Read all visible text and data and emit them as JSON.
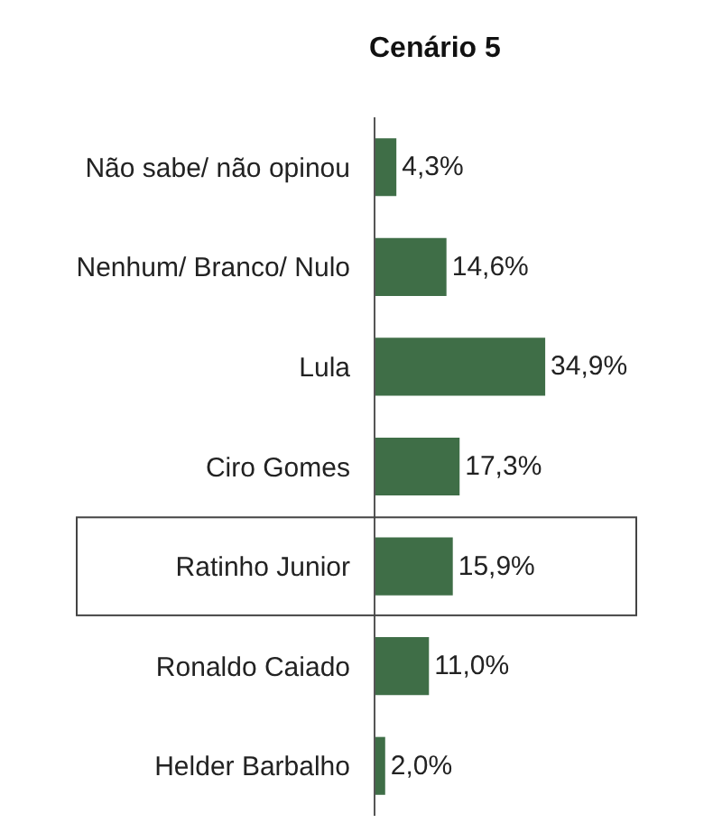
{
  "chart_data": {
    "type": "bar",
    "orientation": "horizontal",
    "title": "Cenário 5",
    "categories": [
      "Não sabe/ não opinou",
      "Nenhum/ Branco/ Nulo",
      "Lula",
      "Ciro Gomes",
      "Ratinho Junior",
      "Ronaldo Caiado",
      "Helder Barbalho"
    ],
    "values": [
      4.3,
      14.6,
      34.9,
      17.3,
      15.9,
      11.0,
      2.0
    ],
    "value_labels": [
      "4,3%",
      "14,6%",
      "34,9%",
      "17,3%",
      "15,9%",
      "11,0%",
      "2,0%"
    ],
    "color": "#3f6e47",
    "tick_labels": "y",
    "grid": false
  }
}
